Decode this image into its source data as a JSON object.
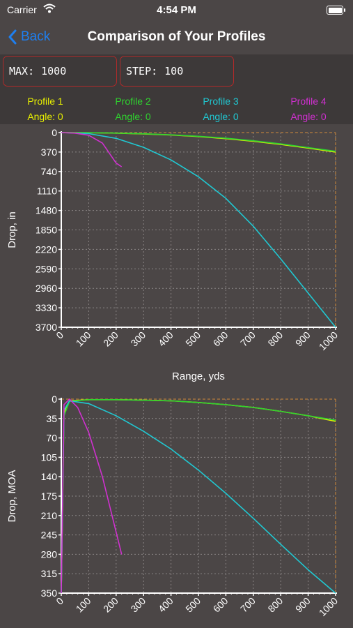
{
  "status": {
    "carrier": "Carrier",
    "time": "4:54 PM"
  },
  "nav": {
    "back_label": "Back",
    "title": "Comparison of Your Profiles"
  },
  "inputs": {
    "max": {
      "label": "MAX:",
      "value": "1000"
    },
    "step": {
      "label": "STEP:",
      "value": "100"
    }
  },
  "profiles": [
    {
      "name": "Profile 1",
      "angle": "Angle: 0",
      "color": "#e8f000"
    },
    {
      "name": "Profile 2",
      "angle": "Angle: 0",
      "color": "#2fd42f"
    },
    {
      "name": "Profile 3",
      "angle": "Angle: 0",
      "color": "#20c8d2"
    },
    {
      "name": "Profile 4",
      "angle": "Angle: 0",
      "color": "#d030d0"
    }
  ],
  "icons": {
    "wifi": "wifi-icon",
    "battery": "battery-icon",
    "back": "chevron-left-icon"
  },
  "chart_data": [
    {
      "type": "line",
      "title": "",
      "xlabel": "Range, yds",
      "ylabel": "Drop, in",
      "xlim": [
        0,
        1000
      ],
      "ylim": [
        0,
        3700
      ],
      "y_inverted": true,
      "grid": true,
      "x_ticks": [
        "0",
        "100",
        "200",
        "300",
        "400",
        "500",
        "600",
        "700",
        "800",
        "900",
        "1000"
      ],
      "y_ticks": [
        "0",
        "370",
        "740",
        "1110",
        "1480",
        "1850",
        "2220",
        "2590",
        "2960",
        "3330",
        "3700"
      ],
      "series": [
        {
          "name": "Profile 1",
          "color": "#e8f000",
          "x": [
            0,
            100,
            200,
            300,
            400,
            500,
            600,
            700,
            800,
            900,
            1000
          ],
          "y": [
            0,
            2,
            10,
            25,
            45,
            75,
            115,
            165,
            225,
            295,
            370
          ]
        },
        {
          "name": "Profile 2",
          "color": "#2fd42f",
          "x": [
            0,
            100,
            200,
            300,
            400,
            500,
            600,
            700,
            800,
            900,
            1000
          ],
          "y": [
            0,
            2,
            9,
            22,
            42,
            70,
            108,
            155,
            215,
            285,
            355
          ]
        },
        {
          "name": "Profile 3",
          "color": "#20c8d2",
          "x": [
            0,
            100,
            200,
            300,
            400,
            500,
            600,
            700,
            800,
            900,
            1000
          ],
          "y": [
            0,
            20,
            110,
            280,
            520,
            840,
            1250,
            1780,
            2400,
            3050,
            3700
          ]
        },
        {
          "name": "Profile 4",
          "color": "#d030d0",
          "x": [
            0,
            50,
            100,
            150,
            200,
            220
          ],
          "y": [
            0,
            10,
            50,
            200,
            580,
            650
          ]
        }
      ]
    },
    {
      "type": "line",
      "title": "",
      "xlabel": "",
      "ylabel": "Drop, MOA",
      "xlim": [
        0,
        1000
      ],
      "ylim": [
        0,
        350
      ],
      "y_inverted": true,
      "grid": true,
      "x_ticks": [
        "0",
        "100",
        "200",
        "300",
        "400",
        "500",
        "600",
        "700",
        "800",
        "900",
        "1000"
      ],
      "y_ticks": [
        "0",
        "35",
        "70",
        "105",
        "140",
        "175",
        "210",
        "245",
        "280",
        "315",
        "350"
      ],
      "series": [
        {
          "name": "Profile 1",
          "color": "#e8f000",
          "x": [
            0,
            10,
            30,
            100,
            200,
            300,
            400,
            500,
            600,
            700,
            800,
            900,
            1000
          ],
          "y": [
            350,
            25,
            3,
            1,
            1,
            2,
            3,
            6,
            10,
            15,
            22,
            30,
            40
          ]
        },
        {
          "name": "Profile 2",
          "color": "#2fd42f",
          "x": [
            0,
            10,
            30,
            100,
            200,
            300,
            400,
            500,
            600,
            700,
            800,
            900,
            1000
          ],
          "y": [
            350,
            30,
            4,
            1,
            1,
            2,
            3,
            6,
            10,
            15,
            22,
            30,
            38
          ]
        },
        {
          "name": "Profile 3",
          "color": "#20c8d2",
          "x": [
            0,
            10,
            30,
            100,
            200,
            300,
            400,
            500,
            600,
            700,
            800,
            900,
            1000
          ],
          "y": [
            350,
            20,
            3,
            8,
            30,
            58,
            90,
            128,
            170,
            215,
            262,
            308,
            350
          ]
        },
        {
          "name": "Profile 4",
          "color": "#d030d0",
          "x": [
            0,
            10,
            30,
            60,
            100,
            150,
            200,
            220
          ],
          "y": [
            350,
            10,
            0,
            15,
            60,
            140,
            240,
            280
          ]
        }
      ]
    }
  ]
}
